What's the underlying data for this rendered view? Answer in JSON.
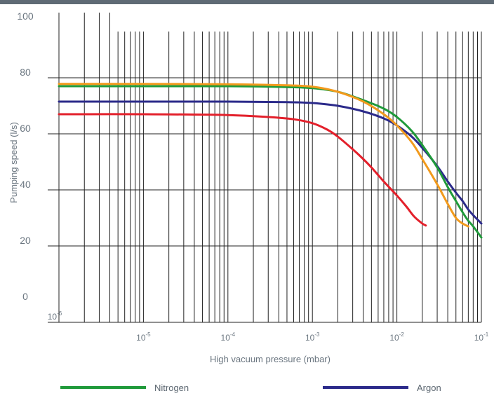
{
  "chart_data": {
    "type": "line",
    "title": "",
    "xlabel": "High vacuum pressure (mbar)",
    "ylabel": "Pumping speed (l/s)",
    "x_scale": "log",
    "xlim": [
      1e-06,
      0.1
    ],
    "ylim": [
      0,
      100
    ],
    "y_ticks": [
      0,
      20,
      40,
      60,
      80,
      100
    ],
    "x_ticks": [
      {
        "value": 1e-06,
        "base": "10",
        "exp": "-6"
      },
      {
        "value": 1e-05,
        "base": "10",
        "exp": "-5"
      },
      {
        "value": 0.0001,
        "base": "10",
        "exp": "-4"
      },
      {
        "value": 0.001,
        "base": "10",
        "exp": "-3"
      },
      {
        "value": 0.01,
        "base": "10",
        "exp": "-2"
      },
      {
        "value": 0.1,
        "base": "10",
        "exp": "-1"
      }
    ],
    "grid": true,
    "legend_position": "bottom",
    "series": [
      {
        "name": "Nitrogen",
        "color": "#1f9a3a",
        "x": [
          1e-06,
          1e-05,
          0.0001,
          0.0005,
          0.001,
          0.002,
          0.004,
          0.007,
          0.01,
          0.015,
          0.02,
          0.03,
          0.04,
          0.05,
          0.06,
          0.07,
          0.08,
          0.1
        ],
        "y": [
          75,
          75,
          75,
          74.7,
          74.3,
          73,
          70,
          67,
          64,
          59,
          54,
          46,
          39,
          34,
          30,
          27,
          25,
          21
        ]
      },
      {
        "name": "Argon",
        "color": "#2b2a8a",
        "x": [
          1e-06,
          1e-05,
          0.0001,
          0.0005,
          0.001,
          0.002,
          0.004,
          0.007,
          0.01,
          0.015,
          0.02,
          0.03,
          0.04,
          0.05,
          0.06,
          0.07,
          0.08,
          0.1
        ],
        "y": [
          69.5,
          69.5,
          69.5,
          69.3,
          69,
          68,
          66,
          63.5,
          61,
          57,
          53,
          46.5,
          41,
          37,
          34,
          31,
          29,
          26
        ]
      },
      {
        "name": "",
        "color": "#f29a1c",
        "x": [
          1e-06,
          1e-05,
          0.0001,
          0.0005,
          0.001,
          0.002,
          0.004,
          0.007,
          0.01,
          0.015,
          0.02,
          0.03,
          0.04,
          0.05,
          0.06,
          0.07
        ],
        "y": [
          75.8,
          75.8,
          75.7,
          75.3,
          74.8,
          73,
          69.5,
          65,
          61,
          55,
          49,
          40,
          33,
          28,
          26,
          25
        ]
      },
      {
        "name": "",
        "color": "#e3202b",
        "x": [
          1e-06,
          1e-05,
          0.0001,
          0.0003,
          0.0006,
          0.001,
          0.0015,
          0.002,
          0.003,
          0.004,
          0.005,
          0.007,
          0.01,
          0.013,
          0.016,
          0.02,
          0.022
        ],
        "y": [
          65,
          65,
          64.7,
          64,
          63.2,
          61.8,
          59.5,
          57,
          52.5,
          49,
          46,
          41,
          36,
          32,
          28.5,
          26,
          25.3
        ]
      }
    ]
  }
}
